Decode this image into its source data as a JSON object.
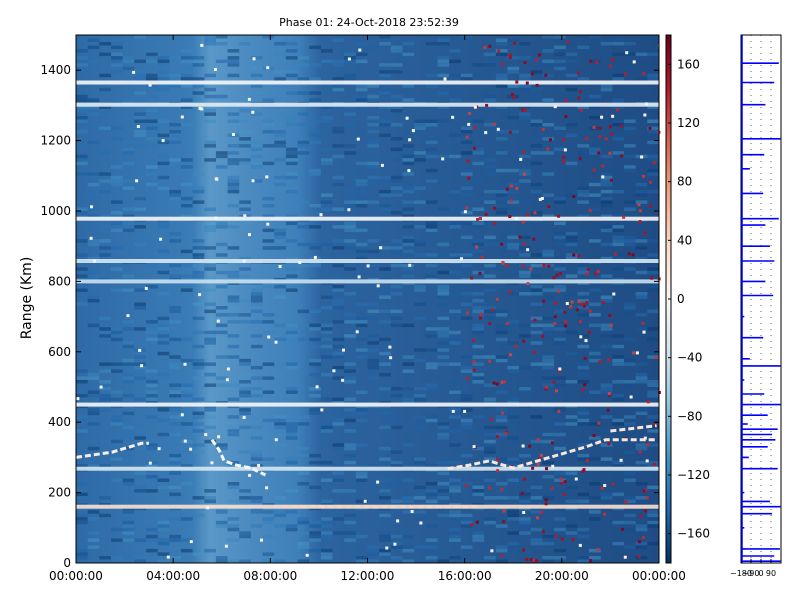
{
  "chart_data": [
    {
      "type": "heatmap",
      "title": "Phase 01: 24-Oct-2018 23:52:39",
      "xlabel": "",
      "ylabel": "Range (Km)",
      "xlim": [
        "00:00:00",
        "24:00:00"
      ],
      "ylim": [
        0,
        1500
      ],
      "x_ticks": [
        "00:00:00",
        "04:00:00",
        "08:00:00",
        "12:00:00",
        "16:00:00",
        "20:00:00",
        "00:00:00"
      ],
      "x_tick_hours": [
        0,
        4,
        8,
        12,
        16,
        20,
        24
      ],
      "y_ticks": [
        0,
        200,
        400,
        600,
        800,
        1000,
        1200,
        1400
      ],
      "colormap": "RdBu_r",
      "colorbar_range": [
        -180,
        180
      ],
      "colorbar_ticks": [
        "160",
        "120",
        "80",
        "40",
        "0",
        "−40",
        "−80",
        "−120",
        "−160"
      ],
      "colorbar_tick_values": [
        160,
        120,
        80,
        40,
        0,
        -40,
        -80,
        -120,
        -160
      ],
      "bright_range_bands_km": [
        {
          "range": 1365,
          "value": 0
        },
        {
          "range": 1302,
          "value": -20
        },
        {
          "range": 978,
          "value": 0
        },
        {
          "range": 858,
          "value": -30
        },
        {
          "range": 800,
          "value": -40
        },
        {
          "range": 450,
          "value": 0
        },
        {
          "range": 268,
          "value": -30
        },
        {
          "range": 160,
          "value": 30
        }
      ],
      "traces": [
        {
          "value": 10,
          "points": [
            [
              0.0,
              300
            ],
            [
              1.5,
              315
            ],
            [
              2.7,
              340
            ],
            [
              3.0,
              340
            ]
          ]
        },
        {
          "value": 0,
          "points": [
            [
              5.6,
              350
            ],
            [
              5.9,
              320
            ],
            [
              6.1,
              290
            ],
            [
              6.6,
              278
            ],
            [
              7.2,
              270
            ],
            [
              7.5,
              260
            ],
            [
              7.8,
              250
            ]
          ]
        },
        {
          "value": 20,
          "points": [
            [
              15.3,
              268
            ],
            [
              16.2,
              278
            ],
            [
              17.0,
              290
            ],
            [
              18.0,
              270
            ],
            [
              19.0,
              290
            ],
            [
              20.0,
              310
            ],
            [
              21.0,
              330
            ],
            [
              21.8,
              350
            ],
            [
              23.9,
              350
            ]
          ]
        },
        {
          "value": 20,
          "points": [
            [
              22.0,
              375
            ],
            [
              23.9,
              390
            ]
          ]
        },
        {
          "value": 40,
          "points": [
            [
              8.5,
              160
            ],
            [
              16.5,
              160
            ]
          ]
        }
      ]
    },
    {
      "type": "line",
      "title": "",
      "xlabel": "",
      "ylabel": "",
      "xlim": [
        -180,
        180
      ],
      "ylim": [
        0,
        1500
      ],
      "x_tick_labels": [
        "−180",
        "−90",
        "0",
        "90"
      ],
      "x_tick_values": [
        -180,
        -90,
        0,
        90
      ],
      "color": "#0000ff",
      "profile": [
        {
          "range": 1420,
          "value": 160
        },
        {
          "range": 1365,
          "value": 120
        },
        {
          "range": 1302,
          "value": 40
        },
        {
          "range": 1205,
          "value": 175
        },
        {
          "range": 1160,
          "value": 30
        },
        {
          "range": 1120,
          "value": -100
        },
        {
          "range": 1050,
          "value": 20
        },
        {
          "range": 978,
          "value": 160
        },
        {
          "range": 960,
          "value": 40
        },
        {
          "range": 900,
          "value": 80
        },
        {
          "range": 858,
          "value": 120
        },
        {
          "range": 800,
          "value": 40
        },
        {
          "range": 760,
          "value": 110
        },
        {
          "range": 700,
          "value": -150
        },
        {
          "range": 640,
          "value": 20
        },
        {
          "range": 580,
          "value": -100
        },
        {
          "range": 560,
          "value": 175
        },
        {
          "range": 520,
          "value": -150
        },
        {
          "range": 480,
          "value": 30
        },
        {
          "range": 450,
          "value": 175
        },
        {
          "range": 420,
          "value": 60
        },
        {
          "range": 395,
          "value": -120
        },
        {
          "range": 380,
          "value": 150
        },
        {
          "range": 365,
          "value": 100
        },
        {
          "range": 350,
          "value": 130
        },
        {
          "range": 330,
          "value": 60
        },
        {
          "range": 300,
          "value": -110
        },
        {
          "range": 268,
          "value": 150
        },
        {
          "range": 200,
          "value": -150
        },
        {
          "range": 175,
          "value": 80
        },
        {
          "range": 160,
          "value": 175
        },
        {
          "range": 140,
          "value": 100
        },
        {
          "range": 100,
          "value": -150
        },
        {
          "range": 40,
          "value": 170
        },
        {
          "range": 20,
          "value": 120
        },
        {
          "range": 5,
          "value": 175
        }
      ]
    }
  ]
}
